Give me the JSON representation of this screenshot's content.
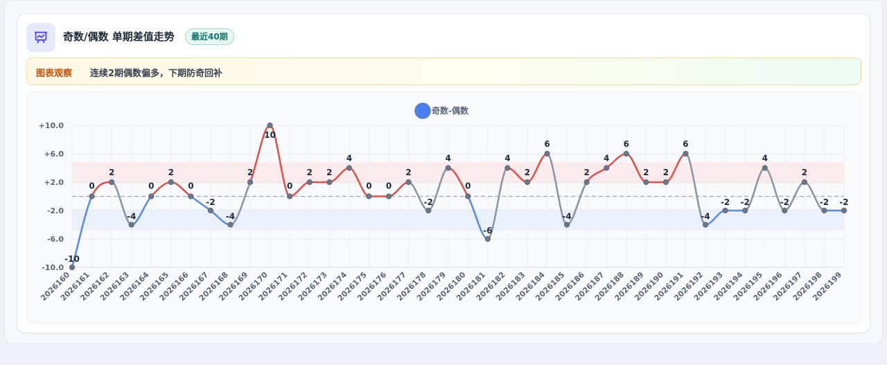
{
  "header": {
    "icon": "presentation-chart-icon",
    "title": "奇数/偶数 单期差值走势",
    "badge": "最近40期"
  },
  "observation": {
    "label": "图表观察",
    "text": "连续2期偶数偏多，下期防奇回补"
  },
  "colors": {
    "positive": "#d9534f",
    "negative": "#5a8de0",
    "neutral": "#8a96a3",
    "legend": "#4a7ff0",
    "pos_band": "#fde7ea",
    "neg_band": "#e8eefc"
  },
  "chart_data": {
    "type": "line",
    "smooth": true,
    "grid": true,
    "legend_position": "top-center",
    "legend": [
      "奇数-偶数"
    ],
    "categories": [
      "2026160",
      "2026161",
      "2026162",
      "2026163",
      "2026164",
      "2026165",
      "2026166",
      "2026167",
      "2026168",
      "2026169",
      "2026170",
      "2026171",
      "2026172",
      "2026173",
      "2026174",
      "2026175",
      "2026176",
      "2026177",
      "2026178",
      "2026179",
      "2026180",
      "2026181",
      "2026182",
      "2026183",
      "2026184",
      "2026185",
      "2026186",
      "2026187",
      "2026188",
      "2026189",
      "2026190",
      "2026191",
      "2026192",
      "2026193",
      "2026194",
      "2026195",
      "2026196",
      "2026197",
      "2026198",
      "2026199"
    ],
    "series": [
      {
        "name": "奇数-偶数",
        "values": [
          -10,
          0,
          2,
          -4,
          0,
          2,
          0,
          -2,
          -4,
          2,
          10,
          0,
          2,
          2,
          4,
          0,
          0,
          2,
          -2,
          4,
          0,
          -6,
          4,
          2,
          6,
          -4,
          2,
          4,
          6,
          2,
          2,
          6,
          -4,
          -2,
          -2,
          4,
          -2,
          2,
          -2,
          -2
        ]
      }
    ],
    "ylim": [
      -10,
      10
    ],
    "yticks": [
      "+10.0",
      "+6.0",
      "+2.0",
      "-2.0",
      "-6.0",
      "-10.0"
    ],
    "ytick_values": [
      10,
      6,
      2,
      -2,
      -6,
      -10
    ],
    "reference_line": 0,
    "bands": [
      {
        "from": 1.8,
        "to": 4.8,
        "kind": "positive"
      },
      {
        "from": -4.8,
        "to": -1.8,
        "kind": "negative"
      }
    ]
  }
}
